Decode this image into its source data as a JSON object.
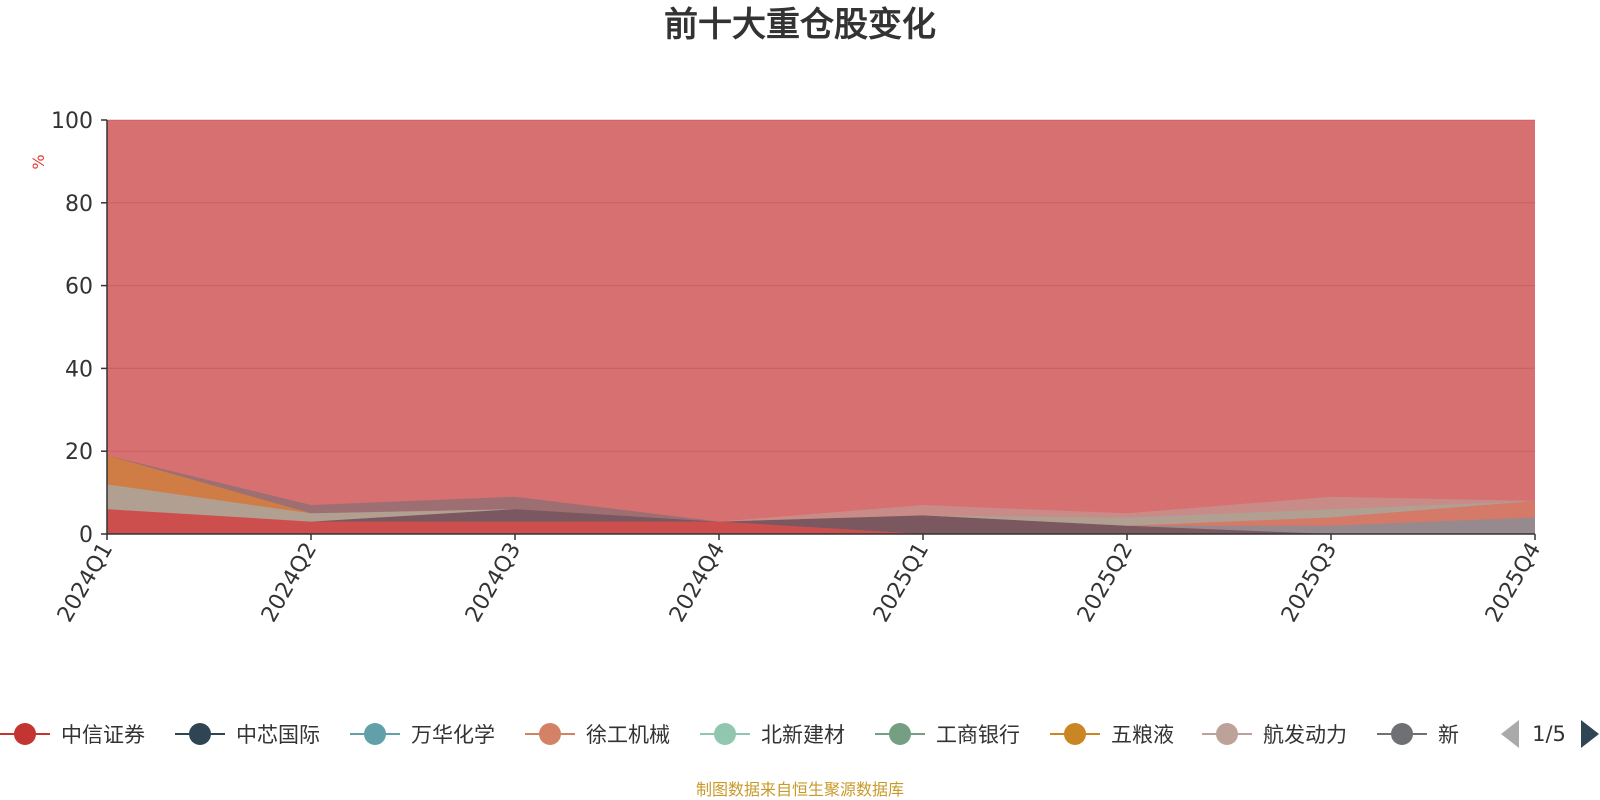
{
  "chart_data": {
    "type": "area",
    "stacked": true,
    "title": "前十大重仓股变化",
    "ylabel": "%",
    "ylim": [
      0,
      100
    ],
    "yticks": [
      0,
      20,
      40,
      60,
      80,
      100
    ],
    "grid": true,
    "categories": [
      "2024Q1",
      "2024Q2",
      "2024Q3",
      "2024Q4",
      "2025Q1",
      "2025Q2",
      "2025Q3",
      "2025Q4"
    ],
    "series": [
      {
        "name": "中信证券",
        "color": "#c23531",
        "values": [
          6,
          3,
          3,
          3,
          0,
          0,
          0,
          0
        ]
      },
      {
        "name": "中芯国际",
        "color": "#2f4554",
        "values": [
          0,
          0,
          3,
          0,
          4.5,
          2,
          0,
          0
        ]
      },
      {
        "name": "万华化学",
        "color": "#61a0a8",
        "values": [
          0,
          0,
          0,
          0,
          0,
          0,
          2,
          4
        ]
      },
      {
        "name": "徐工机械",
        "color": "#d48265",
        "values": [
          0,
          0,
          0,
          0,
          0,
          0,
          2,
          4
        ]
      },
      {
        "name": "北新建材",
        "color": "#91c7ae",
        "values": [
          6,
          2,
          0,
          0,
          0,
          2,
          2,
          0
        ]
      },
      {
        "name": "工商银行",
        "color": "#749f83",
        "values": [
          0,
          0,
          0,
          0,
          0,
          0,
          0,
          0
        ]
      },
      {
        "name": "五粮液",
        "color": "#ca8622",
        "values": [
          7,
          0,
          0,
          0,
          0,
          0,
          0,
          0
        ]
      },
      {
        "name": "航发动力",
        "color": "#bda29a",
        "values": [
          0,
          0,
          0,
          0,
          2.5,
          1,
          3,
          0
        ]
      },
      {
        "name": "新",
        "color": "#6e7074",
        "values": [
          0,
          2,
          3,
          0,
          0,
          0,
          0,
          0
        ]
      }
    ],
    "remainder_color": "#d77070",
    "legend_position": "bottom",
    "legend_page": "1/5"
  },
  "footer": {
    "source": "制图数据来自恒生聚源数据库"
  }
}
